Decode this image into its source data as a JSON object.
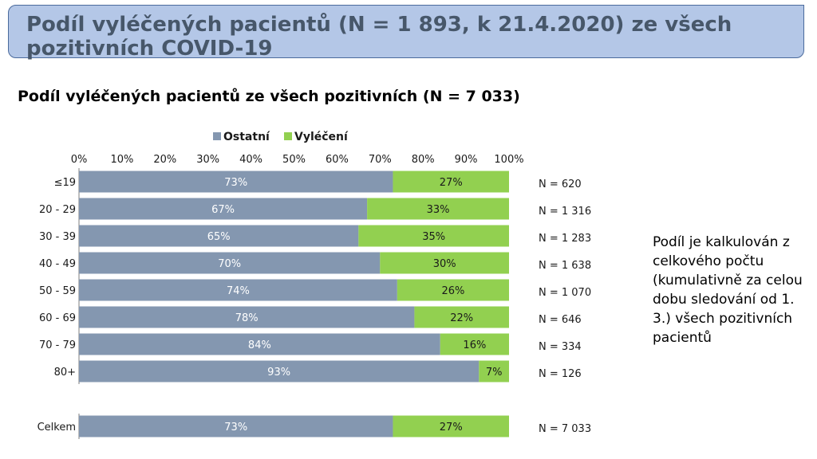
{
  "header": {
    "title": "Podíl vyléčených pacientů (N = 1 893, k 21.4.2020) ze všech pozitivních COVID-19"
  },
  "chart_data": {
    "type": "bar",
    "orientation": "horizontal",
    "stacked": "percent",
    "title": "Podíl vyléčených pacientů ze všech pozitivních (N = 7 033)",
    "categories": [
      "≤19",
      "20 - 29",
      "30 - 39",
      "40 - 49",
      "50 - 59",
      "60 - 69",
      "70 - 79",
      "80+",
      "Celkem"
    ],
    "series": [
      {
        "name": "Ostatní",
        "color": "#8497b0",
        "values": [
          73,
          67,
          65,
          70,
          74,
          78,
          84,
          93,
          73
        ],
        "labels": [
          "73%",
          "67%",
          "65%",
          "70%",
          "74%",
          "78%",
          "84%",
          "93%",
          "73%"
        ]
      },
      {
        "name": "Vyléčení",
        "color": "#92d050",
        "values": [
          27,
          33,
          35,
          30,
          26,
          22,
          16,
          7,
          27
        ],
        "labels": [
          "27%",
          "33%",
          "35%",
          "30%",
          "26%",
          "22%",
          "16%",
          "7%",
          "27%"
        ]
      }
    ],
    "n_labels": [
      "N = 620",
      "N = 1 316",
      "N = 1 283",
      "N = 1 638",
      "N = 1 070",
      "N = 646",
      "N = 334",
      "N = 126",
      "N = 7 033"
    ],
    "x_ticks": [
      "0%",
      "10%",
      "20%",
      "30%",
      "40%",
      "50%",
      "60%",
      "70%",
      "80%",
      "90%",
      "100%"
    ],
    "xlim": [
      0,
      100
    ],
    "xaxis_position": "top",
    "legend_position": "top",
    "grid": false
  },
  "side_note": "Podíl je kalkulován z celkového počtu (kumulativně za celou dobu sledování od 1. 3.) všech pozitivních pacientů"
}
